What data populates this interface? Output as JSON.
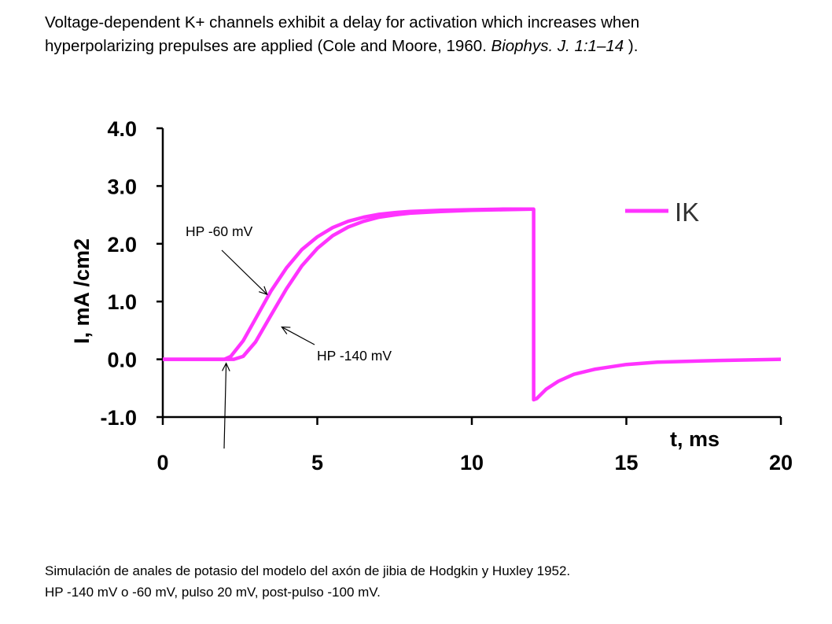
{
  "header": {
    "line1": "Voltage-dependent K+ channels exhibit a delay for activation which increases when",
    "line2_plain": "hyperpolarizing prepulses are applied (Cole and Moore, 1960. ",
    "line2_italic": "Biophys. J. 1:1–14",
    "line2_end": " )."
  },
  "footer": {
    "line1": "Simulación de anales de potasio del modelo del axón de jibia de Hodgkin y Huxley 1952.",
    "line2": "HP -140 mV o -60 mV, pulso 20 mV, post-pulso -100 mV."
  },
  "chart_data": {
    "type": "line",
    "xlabel": "t, ms",
    "ylabel": "I, mA /cm2",
    "xlim": [
      0,
      20
    ],
    "ylim": [
      -1.0,
      4.0
    ],
    "xticks": [
      0,
      5,
      10,
      15,
      20
    ],
    "xtick_labels": [
      "0",
      "5",
      "10",
      "15",
      "20"
    ],
    "yticks": [
      -1.0,
      0.0,
      1.0,
      2.0,
      3.0,
      4.0
    ],
    "ytick_labels": [
      "-1.0",
      "0.0",
      "1.0",
      "2.0",
      "3.0",
      "4.0"
    ],
    "grid": false,
    "legend": {
      "position": "top-right",
      "entries": [
        "IK"
      ]
    },
    "series_color": "#ff33ff",
    "series": [
      {
        "name": "IK",
        "x": [
          0,
          2,
          2.2,
          2.6,
          3.0,
          3.5,
          4.0,
          4.5,
          5.0,
          5.5,
          6.0,
          6.5,
          7.0,
          7.5,
          8.0,
          9.0,
          10.0,
          11.0,
          12.0,
          12.0,
          12.1,
          12.4,
          12.8,
          13.3,
          14.0,
          15.0,
          16.0,
          18.0,
          20.0
        ],
        "y": [
          0,
          0,
          0.05,
          0.32,
          0.7,
          1.18,
          1.58,
          1.9,
          2.12,
          2.28,
          2.39,
          2.46,
          2.51,
          2.54,
          2.56,
          2.58,
          2.59,
          2.6,
          2.6,
          -0.7,
          -0.68,
          -0.52,
          -0.38,
          -0.26,
          -0.17,
          -0.09,
          -0.05,
          -0.02,
          0
        ]
      },
      {
        "name": "IK",
        "x": [
          0,
          2.3,
          2.6,
          3.0,
          3.5,
          4.0,
          4.5,
          5.0,
          5.5,
          6.0,
          6.5,
          7.0,
          7.5,
          8.0,
          9.0,
          10.0,
          11.0,
          12.0
        ],
        "y": [
          0,
          0,
          0.05,
          0.3,
          0.76,
          1.22,
          1.62,
          1.92,
          2.14,
          2.29,
          2.39,
          2.46,
          2.5,
          2.53,
          2.56,
          2.58,
          2.59,
          2.6
        ]
      }
    ],
    "annotations": [
      {
        "text": "HP -60 mV",
        "points_to": [
          3.4,
          1.15
        ]
      },
      {
        "text": "HP -140 mV",
        "points_to": [
          3.8,
          0.6
        ]
      },
      {
        "text": "",
        "points_to": [
          2.0,
          0.0
        ]
      }
    ]
  }
}
